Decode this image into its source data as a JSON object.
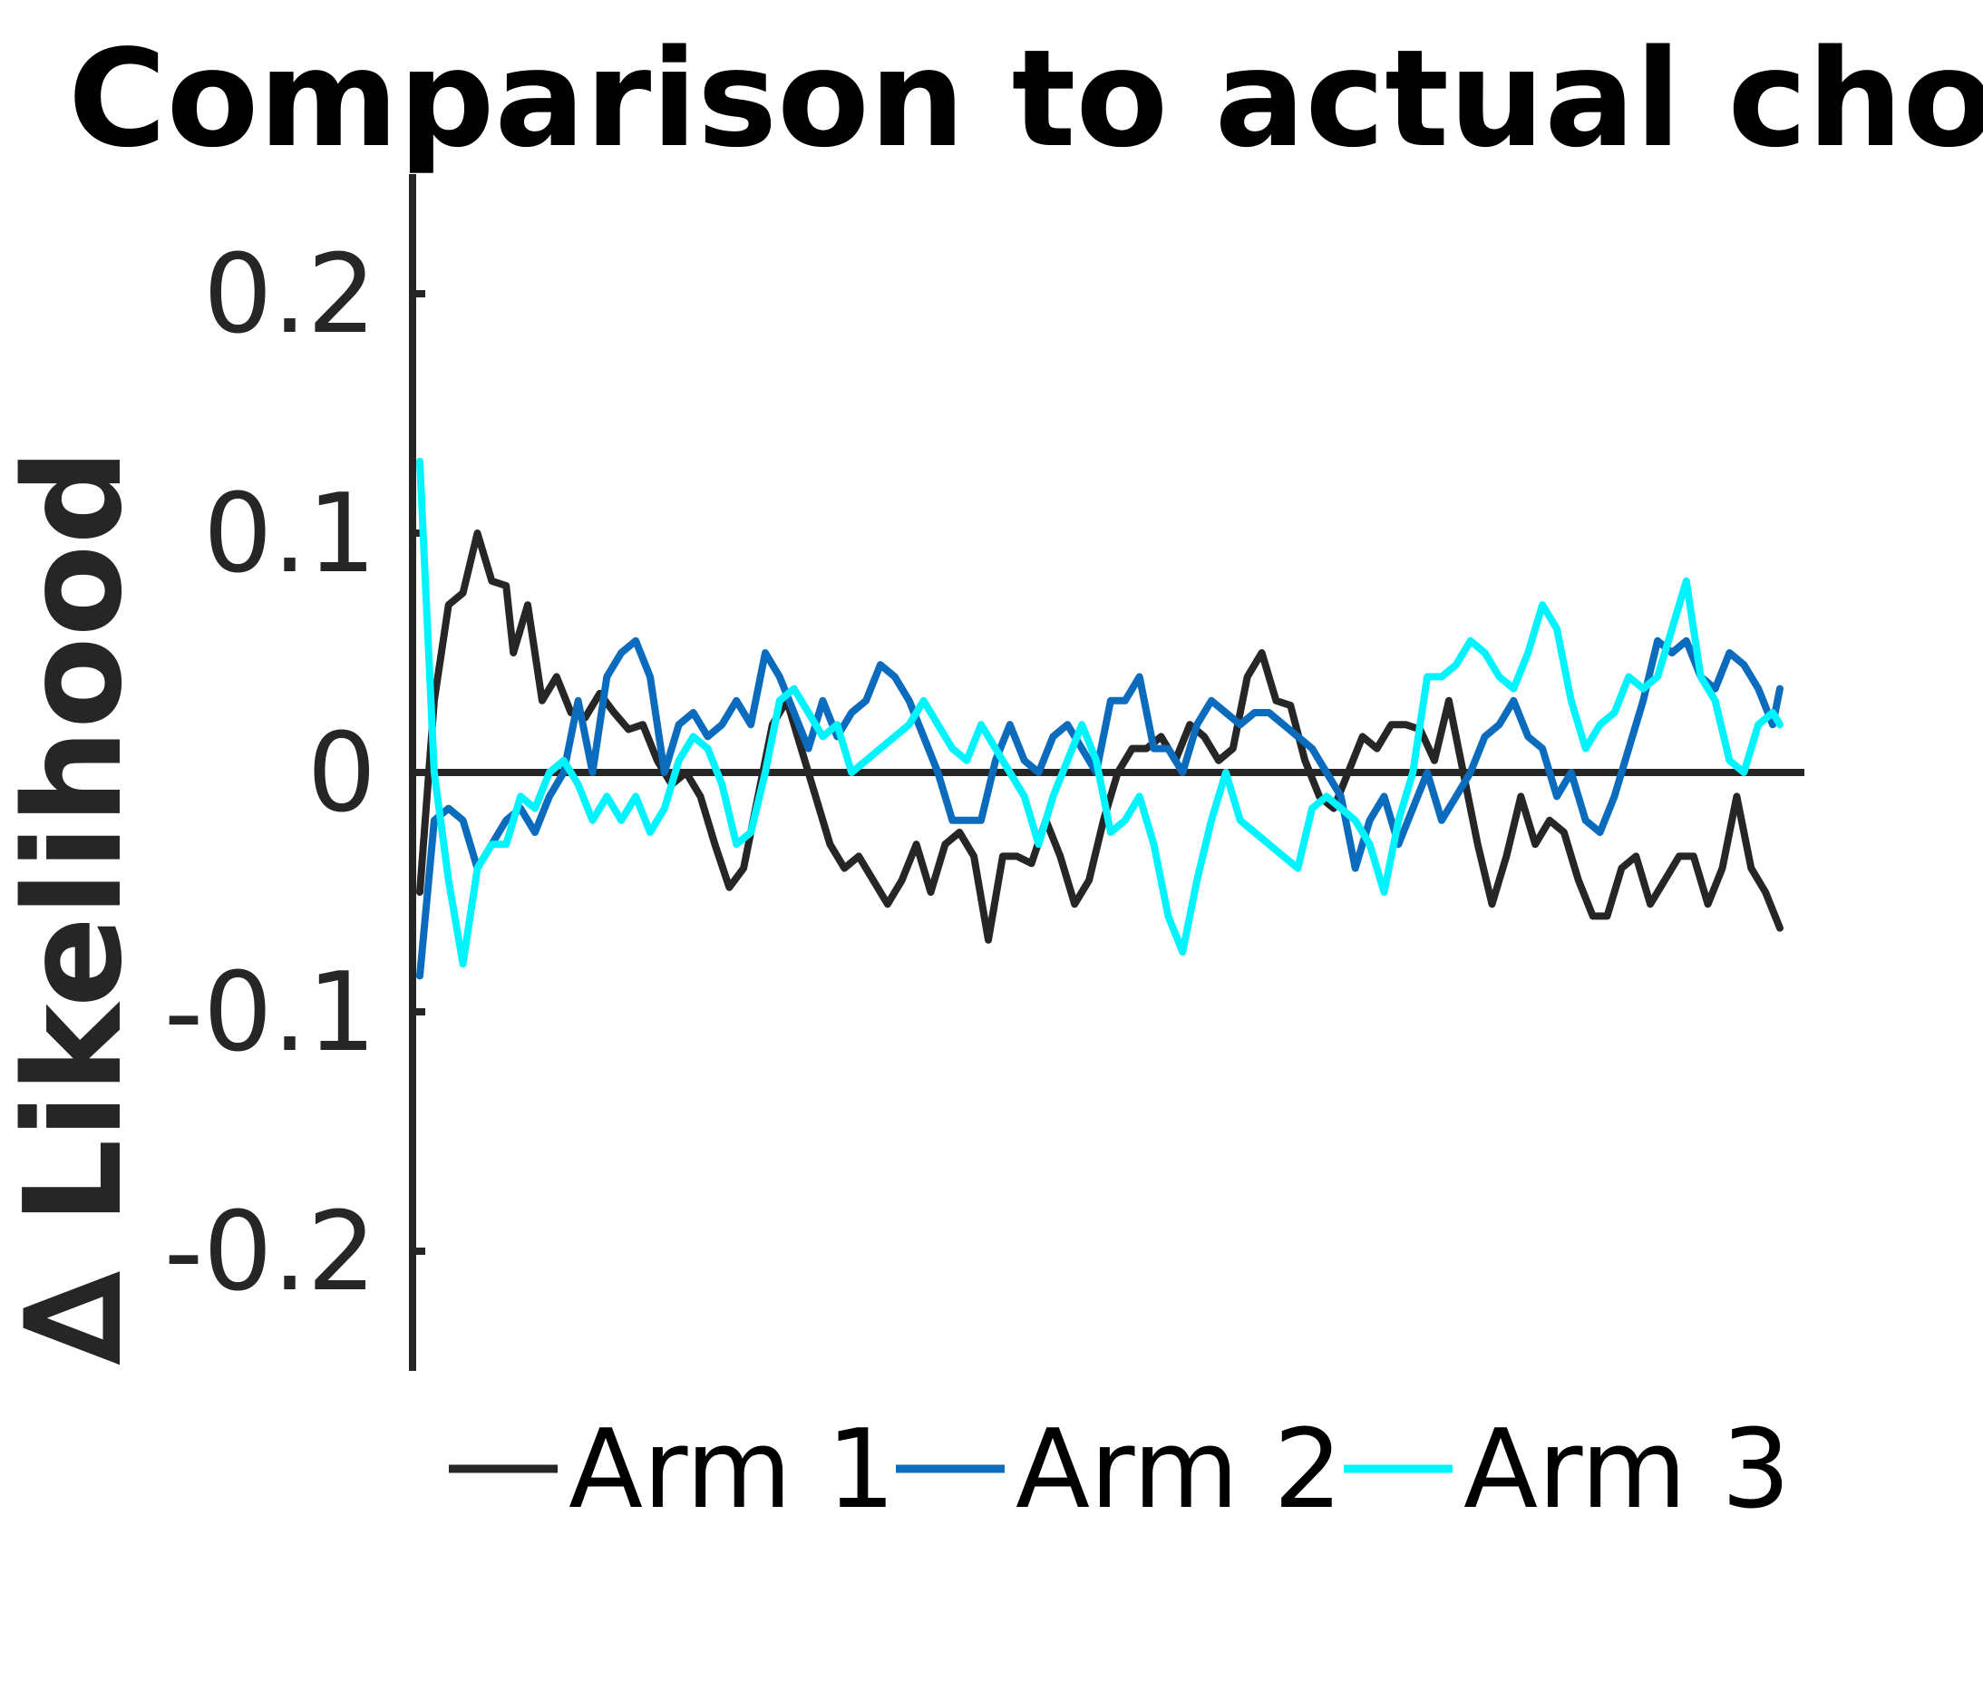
{
  "chart_data": {
    "type": "line",
    "title": "Comparison to actual choic",
    "xlabel": "",
    "ylabel": "∆ Likelihood",
    "ylim": [
      -0.25,
      0.25
    ],
    "xlim": [
      1,
      190
    ],
    "yticks": [
      -0.2,
      -0.1,
      0,
      0.1,
      0.2
    ],
    "ytick_labels": [
      "-0.2",
      "-0.1",
      "0",
      "0.1",
      "0.2"
    ],
    "grid": false,
    "legend_position": "bottom",
    "reference_line": 0,
    "colors": {
      "axis": "#262626",
      "Arm 1": "#262626",
      "Arm 2": "#0b6bbd",
      "Arm 3": "#00f4fd"
    },
    "series": [
      {
        "name": "Arm 1",
        "color": "#262626",
        "points": [
          [
            1,
            -0.05
          ],
          [
            3,
            0.03
          ],
          [
            5,
            0.07
          ],
          [
            7,
            0.075
          ],
          [
            9,
            0.1
          ],
          [
            11,
            0.08
          ],
          [
            13,
            0.078
          ],
          [
            14,
            0.05
          ],
          [
            16,
            0.07
          ],
          [
            18,
            0.03
          ],
          [
            20,
            0.04
          ],
          [
            22,
            0.025
          ],
          [
            24,
            0.023
          ],
          [
            26,
            0.033
          ],
          [
            28,
            0.025
          ],
          [
            30,
            0.018
          ],
          [
            32,
            0.02
          ],
          [
            34,
            0.005
          ],
          [
            36,
            -0.005
          ],
          [
            38,
            0.0
          ],
          [
            40,
            -0.01
          ],
          [
            42,
            -0.03
          ],
          [
            44,
            -0.048
          ],
          [
            46,
            -0.04
          ],
          [
            48,
            -0.01
          ],
          [
            50,
            0.02
          ],
          [
            52,
            0.03
          ],
          [
            54,
            0.01
          ],
          [
            56,
            -0.01
          ],
          [
            58,
            -0.03
          ],
          [
            60,
            -0.04
          ],
          [
            62,
            -0.035
          ],
          [
            64,
            -0.045
          ],
          [
            66,
            -0.055
          ],
          [
            68,
            -0.045
          ],
          [
            70,
            -0.03
          ],
          [
            72,
            -0.05
          ],
          [
            74,
            -0.03
          ],
          [
            76,
            -0.025
          ],
          [
            78,
            -0.035
          ],
          [
            80,
            -0.07
          ],
          [
            82,
            -0.035
          ],
          [
            84,
            -0.035
          ],
          [
            86,
            -0.038
          ],
          [
            88,
            -0.02
          ],
          [
            90,
            -0.035
          ],
          [
            92,
            -0.055
          ],
          [
            94,
            -0.045
          ],
          [
            96,
            -0.02
          ],
          [
            98,
            0.0
          ],
          [
            100,
            0.01
          ],
          [
            102,
            0.01
          ],
          [
            104,
            0.015
          ],
          [
            106,
            0.005
          ],
          [
            108,
            0.02
          ],
          [
            110,
            0.015
          ],
          [
            112,
            0.005
          ],
          [
            114,
            0.01
          ],
          [
            116,
            0.04
          ],
          [
            118,
            0.05
          ],
          [
            120,
            0.03
          ],
          [
            122,
            0.028
          ],
          [
            124,
            0.005
          ],
          [
            126,
            -0.01
          ],
          [
            128,
            -0.015
          ],
          [
            130,
            0.0
          ],
          [
            132,
            0.015
          ],
          [
            134,
            0.01
          ],
          [
            136,
            0.02
          ],
          [
            138,
            0.02
          ],
          [
            140,
            0.018
          ],
          [
            142,
            0.005
          ],
          [
            144,
            0.03
          ],
          [
            146,
            0.0
          ],
          [
            148,
            -0.03
          ],
          [
            150,
            -0.055
          ],
          [
            152,
            -0.035
          ],
          [
            154,
            -0.01
          ],
          [
            156,
            -0.03
          ],
          [
            158,
            -0.02
          ],
          [
            160,
            -0.025
          ],
          [
            162,
            -0.045
          ],
          [
            164,
            -0.06
          ],
          [
            166,
            -0.06
          ],
          [
            168,
            -0.04
          ],
          [
            170,
            -0.035
          ],
          [
            172,
            -0.055
          ],
          [
            174,
            -0.045
          ],
          [
            176,
            -0.035
          ],
          [
            178,
            -0.035
          ],
          [
            180,
            -0.055
          ],
          [
            182,
            -0.04
          ],
          [
            184,
            -0.01
          ],
          [
            186,
            -0.04
          ],
          [
            188,
            -0.05
          ],
          [
            190,
            -0.065
          ]
        ]
      },
      {
        "name": "Arm 2",
        "color": "#0b6bbd",
        "points": [
          [
            1,
            -0.085
          ],
          [
            3,
            -0.02
          ],
          [
            5,
            -0.015
          ],
          [
            7,
            -0.02
          ],
          [
            9,
            -0.04
          ],
          [
            11,
            -0.03
          ],
          [
            13,
            -0.02
          ],
          [
            15,
            -0.015
          ],
          [
            17,
            -0.025
          ],
          [
            19,
            -0.01
          ],
          [
            21,
            0.0
          ],
          [
            23,
            0.03
          ],
          [
            25,
            0.0
          ],
          [
            27,
            0.04
          ],
          [
            29,
            0.05
          ],
          [
            31,
            0.055
          ],
          [
            33,
            0.04
          ],
          [
            35,
            0.0
          ],
          [
            37,
            0.02
          ],
          [
            39,
            0.025
          ],
          [
            41,
            0.015
          ],
          [
            43,
            0.02
          ],
          [
            45,
            0.03
          ],
          [
            47,
            0.02
          ],
          [
            49,
            0.05
          ],
          [
            51,
            0.04
          ],
          [
            53,
            0.025
          ],
          [
            55,
            0.01
          ],
          [
            57,
            0.03
          ],
          [
            59,
            0.015
          ],
          [
            61,
            0.025
          ],
          [
            63,
            0.03
          ],
          [
            65,
            0.045
          ],
          [
            67,
            0.04
          ],
          [
            69,
            0.03
          ],
          [
            71,
            0.015
          ],
          [
            73,
            0.0
          ],
          [
            75,
            -0.02
          ],
          [
            77,
            -0.02
          ],
          [
            79,
            -0.02
          ],
          [
            81,
            0.005
          ],
          [
            83,
            0.02
          ],
          [
            85,
            0.005
          ],
          [
            87,
            0.0
          ],
          [
            89,
            0.015
          ],
          [
            91,
            0.02
          ],
          [
            93,
            0.01
          ],
          [
            95,
            0.0
          ],
          [
            97,
            0.03
          ],
          [
            99,
            0.03
          ],
          [
            101,
            0.04
          ],
          [
            103,
            0.01
          ],
          [
            105,
            0.01
          ],
          [
            107,
            0.0
          ],
          [
            109,
            0.02
          ],
          [
            111,
            0.03
          ],
          [
            113,
            0.025
          ],
          [
            115,
            0.02
          ],
          [
            117,
            0.025
          ],
          [
            119,
            0.025
          ],
          [
            121,
            0.02
          ],
          [
            123,
            0.015
          ],
          [
            125,
            0.01
          ],
          [
            127,
            0.0
          ],
          [
            129,
            -0.01
          ],
          [
            131,
            -0.04
          ],
          [
            133,
            -0.02
          ],
          [
            135,
            -0.01
          ],
          [
            137,
            -0.03
          ],
          [
            139,
            -0.015
          ],
          [
            141,
            0.0
          ],
          [
            143,
            -0.02
          ],
          [
            145,
            -0.01
          ],
          [
            147,
            0.0
          ],
          [
            149,
            0.015
          ],
          [
            151,
            0.02
          ],
          [
            153,
            0.03
          ],
          [
            155,
            0.015
          ],
          [
            157,
            0.01
          ],
          [
            159,
            -0.01
          ],
          [
            161,
            0.0
          ],
          [
            163,
            -0.02
          ],
          [
            165,
            -0.025
          ],
          [
            167,
            -0.01
          ],
          [
            169,
            0.01
          ],
          [
            171,
            0.03
          ],
          [
            173,
            0.055
          ],
          [
            175,
            0.05
          ],
          [
            177,
            0.055
          ],
          [
            179,
            0.04
          ],
          [
            181,
            0.035
          ],
          [
            183,
            0.05
          ],
          [
            185,
            0.045
          ],
          [
            187,
            0.035
          ],
          [
            189,
            0.02
          ],
          [
            190,
            0.035
          ]
        ]
      },
      {
        "name": "Arm 3",
        "color": "#00f4fd",
        "points": [
          [
            1,
            0.13
          ],
          [
            3,
            0.0
          ],
          [
            5,
            -0.045
          ],
          [
            7,
            -0.08
          ],
          [
            9,
            -0.04
          ],
          [
            11,
            -0.03
          ],
          [
            13,
            -0.03
          ],
          [
            15,
            -0.01
          ],
          [
            17,
            -0.015
          ],
          [
            19,
            0.0
          ],
          [
            21,
            0.005
          ],
          [
            23,
            -0.005
          ],
          [
            25,
            -0.02
          ],
          [
            27,
            -0.01
          ],
          [
            29,
            -0.02
          ],
          [
            31,
            -0.01
          ],
          [
            33,
            -0.025
          ],
          [
            35,
            -0.015
          ],
          [
            37,
            0.005
          ],
          [
            39,
            0.015
          ],
          [
            41,
            0.01
          ],
          [
            43,
            -0.005
          ],
          [
            45,
            -0.03
          ],
          [
            47,
            -0.025
          ],
          [
            49,
            0.0
          ],
          [
            51,
            0.03
          ],
          [
            53,
            0.035
          ],
          [
            55,
            0.025
          ],
          [
            57,
            0.015
          ],
          [
            59,
            0.02
          ],
          [
            61,
            0.0
          ],
          [
            63,
            0.005
          ],
          [
            65,
            0.01
          ],
          [
            67,
            0.015
          ],
          [
            69,
            0.02
          ],
          [
            71,
            0.03
          ],
          [
            73,
            0.02
          ],
          [
            75,
            0.01
          ],
          [
            77,
            0.005
          ],
          [
            79,
            0.02
          ],
          [
            81,
            0.01
          ],
          [
            83,
            0.0
          ],
          [
            85,
            -0.01
          ],
          [
            87,
            -0.03
          ],
          [
            89,
            -0.01
          ],
          [
            91,
            0.005
          ],
          [
            93,
            0.02
          ],
          [
            95,
            0.005
          ],
          [
            97,
            -0.025
          ],
          [
            99,
            -0.02
          ],
          [
            101,
            -0.01
          ],
          [
            103,
            -0.03
          ],
          [
            105,
            -0.06
          ],
          [
            107,
            -0.075
          ],
          [
            109,
            -0.045
          ],
          [
            111,
            -0.02
          ],
          [
            113,
            0.0
          ],
          [
            115,
            -0.02
          ],
          [
            117,
            -0.025
          ],
          [
            119,
            -0.03
          ],
          [
            121,
            -0.035
          ],
          [
            123,
            -0.04
          ],
          [
            125,
            -0.015
          ],
          [
            127,
            -0.01
          ],
          [
            129,
            -0.015
          ],
          [
            131,
            -0.02
          ],
          [
            133,
            -0.03
          ],
          [
            135,
            -0.05
          ],
          [
            137,
            -0.02
          ],
          [
            139,
            0.0
          ],
          [
            141,
            0.04
          ],
          [
            143,
            0.04
          ],
          [
            145,
            0.045
          ],
          [
            147,
            0.055
          ],
          [
            149,
            0.05
          ],
          [
            151,
            0.04
          ],
          [
            153,
            0.035
          ],
          [
            155,
            0.05
          ],
          [
            157,
            0.07
          ],
          [
            159,
            0.06
          ],
          [
            161,
            0.03
          ],
          [
            163,
            0.01
          ],
          [
            165,
            0.02
          ],
          [
            167,
            0.025
          ],
          [
            169,
            0.04
          ],
          [
            171,
            0.035
          ],
          [
            173,
            0.04
          ],
          [
            175,
            0.06
          ],
          [
            177,
            0.08
          ],
          [
            179,
            0.04
          ],
          [
            181,
            0.03
          ],
          [
            183,
            0.005
          ],
          [
            185,
            0.0
          ],
          [
            187,
            0.02
          ],
          [
            189,
            0.025
          ],
          [
            190,
            0.02
          ]
        ]
      }
    ]
  }
}
